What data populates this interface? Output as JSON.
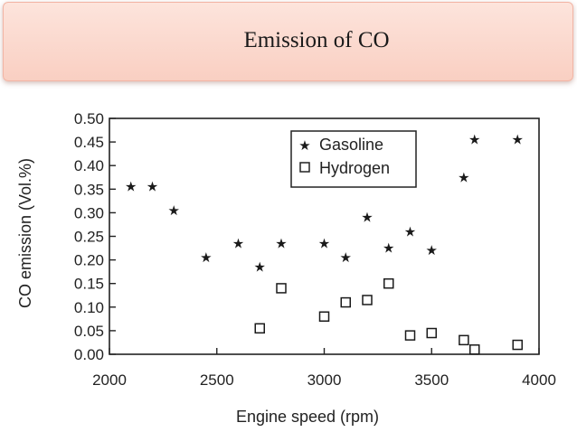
{
  "slide": {
    "title": "Emission of CO"
  },
  "chart_data": {
    "type": "scatter",
    "title": "",
    "xlabel": "Engine speed (rpm)",
    "ylabel": "CO emission (Vol.%)",
    "xlim": [
      2000,
      4000
    ],
    "ylim": [
      0.0,
      0.5
    ],
    "x_ticks": [
      "2000",
      "2500",
      "3000",
      "3500",
      "4000"
    ],
    "y_ticks": [
      "0.00",
      "0.05",
      "0.10",
      "0.15",
      "0.20",
      "0.25",
      "0.30",
      "0.35",
      "0.40",
      "0.45",
      "0.50"
    ],
    "grid": false,
    "legend_position": "top-right",
    "series": [
      {
        "name": "Gasoline",
        "marker": "star",
        "color": "#1a1a1a",
        "points": [
          {
            "x": 2100,
            "y": 0.355
          },
          {
            "x": 2200,
            "y": 0.355
          },
          {
            "x": 2300,
            "y": 0.305
          },
          {
            "x": 2450,
            "y": 0.205
          },
          {
            "x": 2600,
            "y": 0.235
          },
          {
            "x": 2700,
            "y": 0.185
          },
          {
            "x": 2800,
            "y": 0.235
          },
          {
            "x": 3000,
            "y": 0.235
          },
          {
            "x": 3100,
            "y": 0.205
          },
          {
            "x": 3200,
            "y": 0.29
          },
          {
            "x": 3300,
            "y": 0.225
          },
          {
            "x": 3400,
            "y": 0.26
          },
          {
            "x": 3500,
            "y": 0.22
          },
          {
            "x": 3650,
            "y": 0.375
          },
          {
            "x": 3700,
            "y": 0.455
          },
          {
            "x": 3900,
            "y": 0.455
          }
        ]
      },
      {
        "name": "Hydrogen",
        "marker": "square-open",
        "color": "#1a1a1a",
        "points": [
          {
            "x": 2700,
            "y": 0.055
          },
          {
            "x": 2800,
            "y": 0.14
          },
          {
            "x": 3000,
            "y": 0.08
          },
          {
            "x": 3100,
            "y": 0.11
          },
          {
            "x": 3200,
            "y": 0.115
          },
          {
            "x": 3300,
            "y": 0.15
          },
          {
            "x": 3400,
            "y": 0.04
          },
          {
            "x": 3500,
            "y": 0.045
          },
          {
            "x": 3650,
            "y": 0.03
          },
          {
            "x": 3700,
            "y": 0.01
          },
          {
            "x": 3900,
            "y": 0.02
          }
        ]
      }
    ]
  }
}
